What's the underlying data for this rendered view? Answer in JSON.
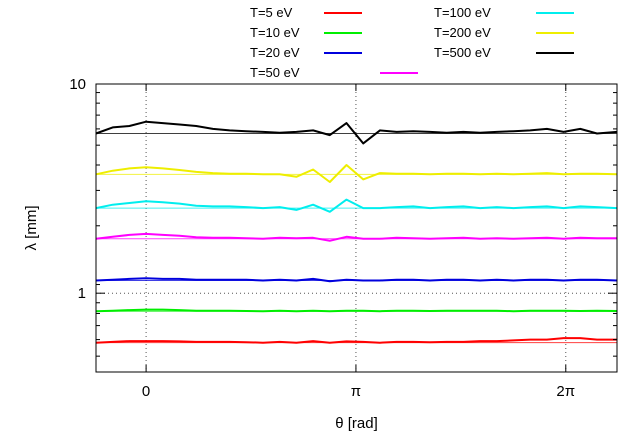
{
  "chart_data": {
    "type": "line",
    "xlabel": "θ [rad]",
    "ylabel": "λ [mm]",
    "xlim": [
      -0.75,
      7.05
    ],
    "ylim": [
      0.42,
      10
    ],
    "y_scale": "log",
    "x_ticks": [
      {
        "value": 0,
        "label": "0"
      },
      {
        "value": 3.14159,
        "label": "π"
      },
      {
        "value": 6.28318,
        "label": "2π"
      }
    ],
    "y_ticks": [
      {
        "value": 1,
        "label": "1"
      },
      {
        "value": 10,
        "label": "10"
      }
    ],
    "grid": "dotted at major ticks",
    "legend_placement": "top, above plot, three columns",
    "x": [
      -0.75,
      -0.5,
      -0.25,
      0,
      0.25,
      0.5,
      0.75,
      1.0,
      1.25,
      1.5,
      1.75,
      2.0,
      2.25,
      2.5,
      2.75,
      3.0,
      3.25,
      3.5,
      3.75,
      4.0,
      4.25,
      4.5,
      4.75,
      5.0,
      5.25,
      5.5,
      5.75,
      6.0,
      6.25,
      6.5,
      6.75,
      7.05
    ],
    "series": [
      {
        "name": "T=5 eV",
        "color": "#ff0000",
        "reference": 0.58,
        "values": [
          0.58,
          0.585,
          0.59,
          0.59,
          0.59,
          0.588,
          0.585,
          0.585,
          0.585,
          0.583,
          0.58,
          0.585,
          0.58,
          0.59,
          0.58,
          0.588,
          0.585,
          0.58,
          0.585,
          0.585,
          0.583,
          0.585,
          0.585,
          0.59,
          0.59,
          0.595,
          0.6,
          0.6,
          0.61,
          0.61,
          0.6,
          0.6
        ]
      },
      {
        "name": "T=10 eV",
        "color": "#00ee00",
        "reference": 0.82,
        "values": [
          0.82,
          0.825,
          0.83,
          0.835,
          0.835,
          0.83,
          0.825,
          0.825,
          0.825,
          0.822,
          0.82,
          0.825,
          0.82,
          0.825,
          0.82,
          0.825,
          0.825,
          0.82,
          0.825,
          0.825,
          0.822,
          0.825,
          0.825,
          0.825,
          0.825,
          0.82,
          0.825,
          0.825,
          0.825,
          0.822,
          0.825,
          0.822
        ]
      },
      {
        "name": "T=20 eV",
        "color": "#0000dd",
        "reference": 1.15,
        "values": [
          1.15,
          1.16,
          1.17,
          1.18,
          1.17,
          1.17,
          1.16,
          1.16,
          1.16,
          1.16,
          1.15,
          1.16,
          1.15,
          1.17,
          1.14,
          1.16,
          1.15,
          1.15,
          1.16,
          1.16,
          1.15,
          1.16,
          1.16,
          1.15,
          1.16,
          1.15,
          1.16,
          1.16,
          1.15,
          1.16,
          1.16,
          1.15
        ]
      },
      {
        "name": "T=50 eV",
        "color": "#ff00ff",
        "reference": 1.82,
        "values": [
          1.82,
          1.86,
          1.9,
          1.92,
          1.9,
          1.88,
          1.85,
          1.84,
          1.84,
          1.83,
          1.82,
          1.84,
          1.83,
          1.84,
          1.78,
          1.86,
          1.82,
          1.82,
          1.84,
          1.83,
          1.82,
          1.83,
          1.84,
          1.82,
          1.83,
          1.82,
          1.83,
          1.84,
          1.82,
          1.84,
          1.83,
          1.83
        ]
      },
      {
        "name": "T=100 eV",
        "color": "#00eeee",
        "reference": 2.55,
        "values": [
          2.55,
          2.65,
          2.7,
          2.75,
          2.72,
          2.68,
          2.62,
          2.6,
          2.6,
          2.58,
          2.55,
          2.58,
          2.5,
          2.65,
          2.45,
          2.8,
          2.55,
          2.55,
          2.58,
          2.6,
          2.55,
          2.58,
          2.6,
          2.55,
          2.58,
          2.55,
          2.58,
          2.6,
          2.55,
          2.6,
          2.58,
          2.55
        ]
      },
      {
        "name": "T=200 eV",
        "color": "#eeee00",
        "reference": 3.7,
        "values": [
          3.7,
          3.85,
          3.95,
          4.0,
          3.95,
          3.88,
          3.8,
          3.75,
          3.72,
          3.72,
          3.7,
          3.7,
          3.6,
          3.9,
          3.4,
          4.1,
          3.5,
          3.75,
          3.72,
          3.72,
          3.7,
          3.72,
          3.72,
          3.7,
          3.72,
          3.7,
          3.72,
          3.75,
          3.7,
          3.72,
          3.72,
          3.7
        ]
      },
      {
        "name": "T=500 eV",
        "color": "#000000",
        "reference": 5.8,
        "values": [
          5.8,
          6.2,
          6.3,
          6.6,
          6.5,
          6.4,
          6.3,
          6.1,
          6.0,
          5.95,
          5.9,
          5.85,
          5.9,
          6.0,
          5.7,
          6.5,
          5.2,
          6.0,
          5.9,
          5.95,
          5.9,
          5.85,
          5.9,
          5.85,
          5.9,
          5.95,
          6.0,
          6.1,
          5.9,
          6.1,
          5.8,
          5.9
        ]
      }
    ]
  }
}
